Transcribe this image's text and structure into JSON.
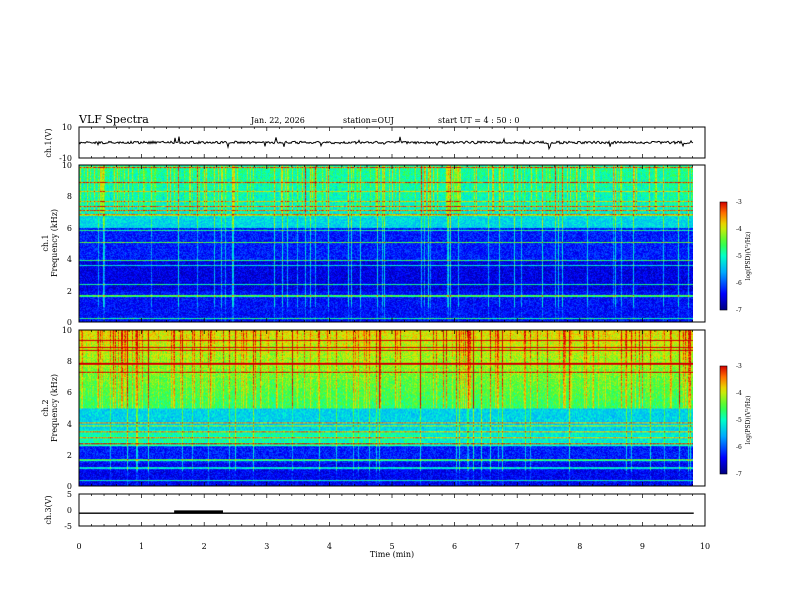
{
  "header": {
    "title": "VLF Spectra",
    "date": "Jan. 22, 2026",
    "station": "station=OUJ",
    "start_ut": "start UT =  4 : 50 : 0"
  },
  "chart_data": [
    {
      "type": "line",
      "name": "ch1-waveform",
      "ylabel": "ch.1(V)",
      "ylim": [
        -10,
        10
      ],
      "yticks": [
        "10",
        "-10"
      ],
      "xlim": [
        0,
        10
      ],
      "baseline": 0,
      "data_end_min": 9.82
    },
    {
      "type": "heatmap",
      "name": "ch1-spectrogram",
      "ylabel_channel": "ch.1",
      "ylabel": "Frequency (kHz)",
      "ylim": [
        0,
        10
      ],
      "yticks": [
        "0",
        "2",
        "4",
        "6",
        "8",
        "10"
      ],
      "xlim": [
        0,
        10
      ],
      "data_end_min": 9.82,
      "colorbar": {
        "label": "log(PSD)(V²/Hz)",
        "range": [
          -7,
          -3
        ],
        "ticks": [
          "-3",
          "-4",
          "-5",
          "-6",
          "-7"
        ]
      }
    },
    {
      "type": "heatmap",
      "name": "ch2-spectrogram",
      "ylabel_channel": "ch.2",
      "ylabel": "Frequency (kHz)",
      "ylim": [
        0,
        10
      ],
      "yticks": [
        "0",
        "2",
        "4",
        "6",
        "8",
        "10"
      ],
      "xlim": [
        0,
        10
      ],
      "data_end_min": 9.82,
      "colorbar": {
        "label": "log(PSD)(V²/Hz)",
        "range": [
          -7,
          -3
        ],
        "ticks": [
          "-3",
          "-4",
          "-5",
          "-6",
          "-7"
        ]
      }
    },
    {
      "type": "line",
      "name": "ch3-waveform",
      "ylabel": "ch.3(V)",
      "ylim": [
        -5,
        5
      ],
      "yticks": [
        "5",
        "0",
        "-5"
      ],
      "xlim": [
        0,
        10
      ],
      "xlabel": "Time (min)",
      "xticks": [
        "0",
        "1",
        "2",
        "3",
        "4",
        "5",
        "6",
        "7",
        "8",
        "9",
        "10"
      ],
      "level": -1,
      "pulse": {
        "start_min": 1.52,
        "end_min": 2.3,
        "value": -0.6
      },
      "data_end_min": 9.82
    }
  ]
}
